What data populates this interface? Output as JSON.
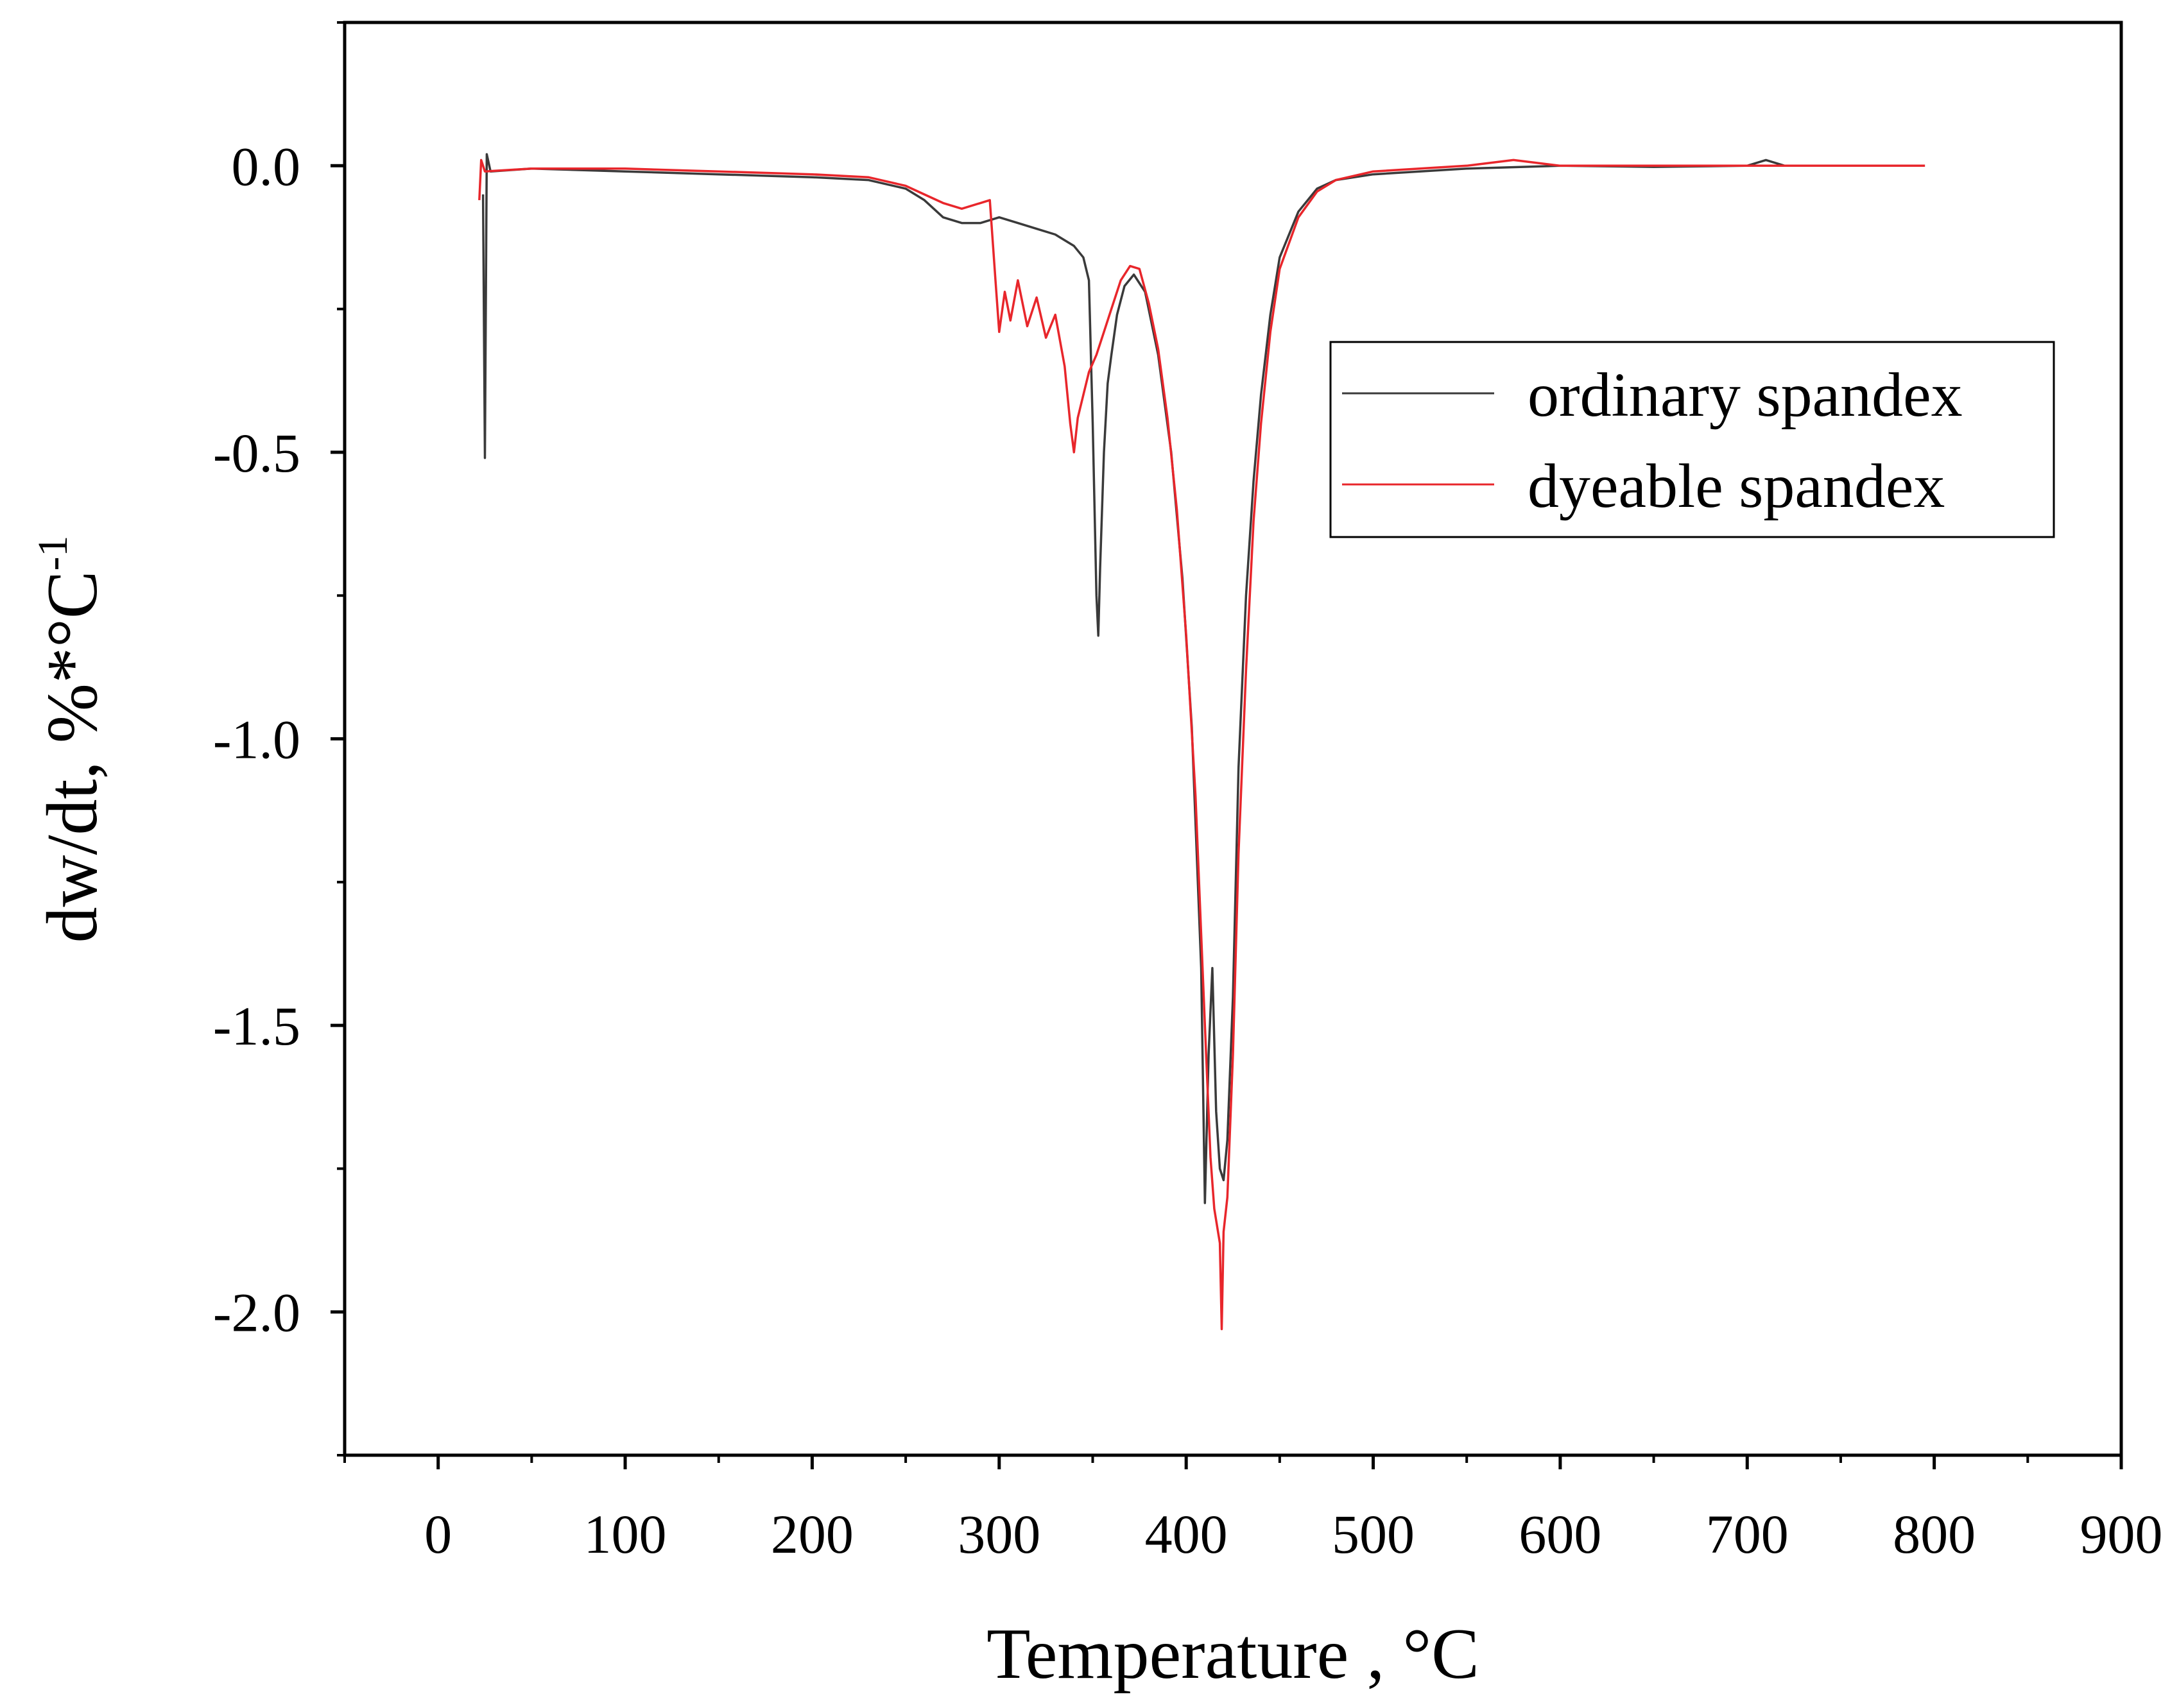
{
  "chart_data": {
    "type": "line",
    "title": "",
    "xlabel": "Temperature , °C",
    "ylabel": "dw/dt, %*°C",
    "ylabel_superscript": "-1",
    "xlim": [
      -50,
      900
    ],
    "ylim": [
      -2.25,
      0.25
    ],
    "x_ticks": [
      0,
      100,
      200,
      300,
      400,
      500,
      600,
      700,
      800,
      900
    ],
    "x_tick_labels": [
      "0",
      "100",
      "200",
      "300",
      "400",
      "500",
      "600",
      "700",
      "800",
      "900"
    ],
    "y_ticks": [
      0.0,
      -0.5,
      -1.0,
      -1.5,
      -2.0
    ],
    "y_tick_labels": [
      "0.0",
      "-0.5",
      "-1.0",
      "-1.5",
      "-2.0"
    ],
    "grid": false,
    "legend_position": "right",
    "series": [
      {
        "name": "ordinary spandex",
        "color": "#3a3a3a",
        "points": [
          [
            24,
            -0.05
          ],
          [
            25,
            -0.51
          ],
          [
            26,
            0.02
          ],
          [
            28,
            -0.01
          ],
          [
            50,
            -0.005
          ],
          [
            100,
            -0.01
          ],
          [
            150,
            -0.015
          ],
          [
            200,
            -0.02
          ],
          [
            230,
            -0.025
          ],
          [
            250,
            -0.04
          ],
          [
            260,
            -0.06
          ],
          [
            270,
            -0.09
          ],
          [
            280,
            -0.1
          ],
          [
            290,
            -0.1
          ],
          [
            300,
            -0.09
          ],
          [
            310,
            -0.1
          ],
          [
            320,
            -0.11
          ],
          [
            330,
            -0.12
          ],
          [
            340,
            -0.14
          ],
          [
            345,
            -0.16
          ],
          [
            348,
            -0.2
          ],
          [
            350,
            -0.45
          ],
          [
            352,
            -0.75
          ],
          [
            353,
            -0.82
          ],
          [
            354,
            -0.7
          ],
          [
            356,
            -0.5
          ],
          [
            358,
            -0.38
          ],
          [
            360,
            -0.33
          ],
          [
            363,
            -0.26
          ],
          [
            367,
            -0.21
          ],
          [
            372,
            -0.19
          ],
          [
            378,
            -0.22
          ],
          [
            385,
            -0.33
          ],
          [
            392,
            -0.5
          ],
          [
            398,
            -0.72
          ],
          [
            403,
            -0.98
          ],
          [
            408,
            -1.4
          ],
          [
            410,
            -1.81
          ],
          [
            412,
            -1.55
          ],
          [
            414,
            -1.4
          ],
          [
            416,
            -1.65
          ],
          [
            418,
            -1.75
          ],
          [
            420,
            -1.77
          ],
          [
            422,
            -1.7
          ],
          [
            425,
            -1.45
          ],
          [
            428,
            -1.05
          ],
          [
            432,
            -0.75
          ],
          [
            436,
            -0.55
          ],
          [
            440,
            -0.4
          ],
          [
            445,
            -0.26
          ],
          [
            450,
            -0.16
          ],
          [
            460,
            -0.08
          ],
          [
            470,
            -0.04
          ],
          [
            480,
            -0.025
          ],
          [
            500,
            -0.015
          ],
          [
            550,
            -0.005
          ],
          [
            600,
            0.0
          ],
          [
            650,
            -0.002
          ],
          [
            700,
            0.0
          ],
          [
            710,
            0.01
          ],
          [
            720,
            0.0
          ],
          [
            750,
            0.0
          ],
          [
            795,
            0.0
          ]
        ]
      },
      {
        "name": "dyeable spandex",
        "color": "#e8262b",
        "points": [
          [
            22,
            -0.06
          ],
          [
            23,
            0.01
          ],
          [
            25,
            -0.01
          ],
          [
            50,
            -0.005
          ],
          [
            100,
            -0.005
          ],
          [
            150,
            -0.01
          ],
          [
            200,
            -0.015
          ],
          [
            230,
            -0.02
          ],
          [
            250,
            -0.035
          ],
          [
            260,
            -0.05
          ],
          [
            270,
            -0.065
          ],
          [
            280,
            -0.075
          ],
          [
            290,
            -0.065
          ],
          [
            295,
            -0.06
          ],
          [
            298,
            -0.2
          ],
          [
            300,
            -0.29
          ],
          [
            303,
            -0.22
          ],
          [
            306,
            -0.27
          ],
          [
            310,
            -0.2
          ],
          [
            315,
            -0.28
          ],
          [
            320,
            -0.23
          ],
          [
            325,
            -0.3
          ],
          [
            330,
            -0.26
          ],
          [
            335,
            -0.35
          ],
          [
            338,
            -0.45
          ],
          [
            340,
            -0.5
          ],
          [
            342,
            -0.44
          ],
          [
            345,
            -0.4
          ],
          [
            348,
            -0.36
          ],
          [
            352,
            -0.33
          ],
          [
            356,
            -0.29
          ],
          [
            360,
            -0.25
          ],
          [
            365,
            -0.2
          ],
          [
            370,
            -0.175
          ],
          [
            375,
            -0.18
          ],
          [
            380,
            -0.24
          ],
          [
            385,
            -0.32
          ],
          [
            390,
            -0.44
          ],
          [
            395,
            -0.6
          ],
          [
            400,
            -0.82
          ],
          [
            405,
            -1.1
          ],
          [
            410,
            -1.5
          ],
          [
            413,
            -1.73
          ],
          [
            415,
            -1.82
          ],
          [
            418,
            -1.88
          ],
          [
            419,
            -2.03
          ],
          [
            420,
            -1.86
          ],
          [
            422,
            -1.8
          ],
          [
            425,
            -1.55
          ],
          [
            428,
            -1.2
          ],
          [
            432,
            -0.88
          ],
          [
            436,
            -0.62
          ],
          [
            440,
            -0.45
          ],
          [
            445,
            -0.29
          ],
          [
            450,
            -0.18
          ],
          [
            460,
            -0.09
          ],
          [
            470,
            -0.045
          ],
          [
            480,
            -0.025
          ],
          [
            500,
            -0.01
          ],
          [
            550,
            0.0
          ],
          [
            575,
            0.01
          ],
          [
            600,
            0.0
          ],
          [
            650,
            0.0
          ],
          [
            700,
            0.0
          ],
          [
            750,
            0.0
          ],
          [
            795,
            0.0
          ]
        ]
      }
    ]
  }
}
